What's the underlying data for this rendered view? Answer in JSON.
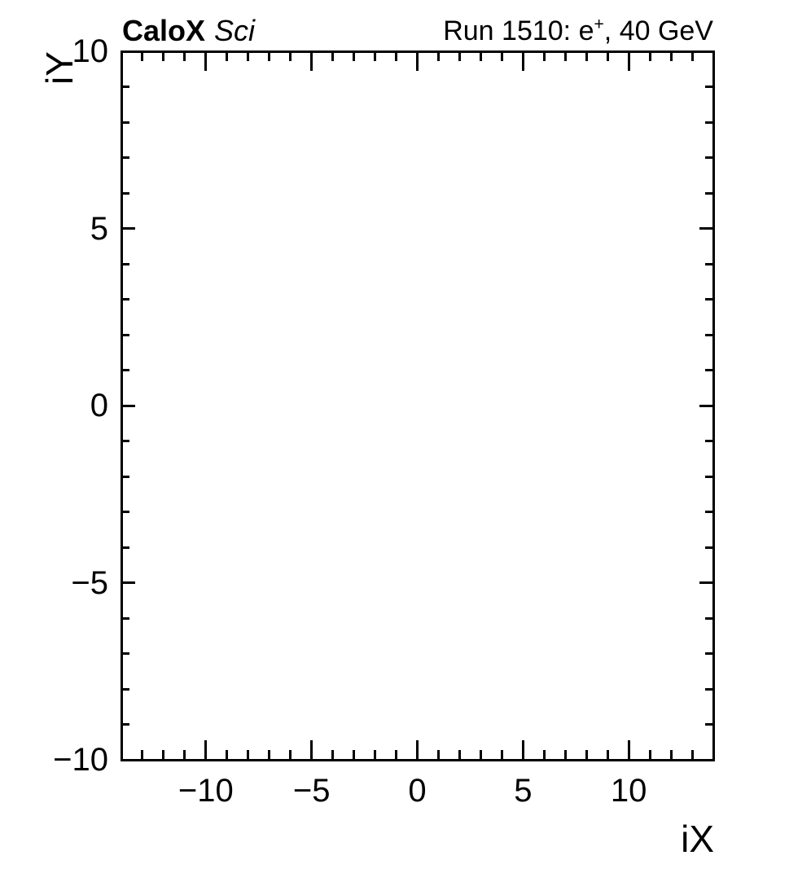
{
  "page": {
    "background_color": "#ffffff",
    "foreground_color": "#000000"
  },
  "header": {
    "left_title_bold": "CaloX",
    "left_title_italic": "Sci",
    "right_title": {
      "prefix": "Run 1510: e",
      "superscript": "+",
      "suffix": ", 40 GeV"
    }
  },
  "chart_data": {
    "type": "scatter",
    "title_left": "CaloX Sci",
    "title_right": "Run 1510: e+, 40 GeV",
    "xlabel": "iX",
    "ylabel": "iY",
    "xlim": [
      -14,
      14
    ],
    "ylim": [
      -10,
      10
    ],
    "x_ticks": {
      "major_values": [
        -10,
        -5,
        0,
        5,
        10
      ],
      "major_labels": [
        "−10",
        "−5",
        "0",
        "5",
        "10"
      ],
      "minor_step": 1
    },
    "y_ticks": {
      "major_values": [
        10,
        5,
        0,
        -5,
        -10
      ],
      "major_labels": [
        "10",
        "5",
        "0",
        "−5",
        "−10"
      ],
      "minor_step": 1
    },
    "grid": false,
    "tick_style": "inward-mirrored-on-all-four-sides",
    "series": []
  }
}
